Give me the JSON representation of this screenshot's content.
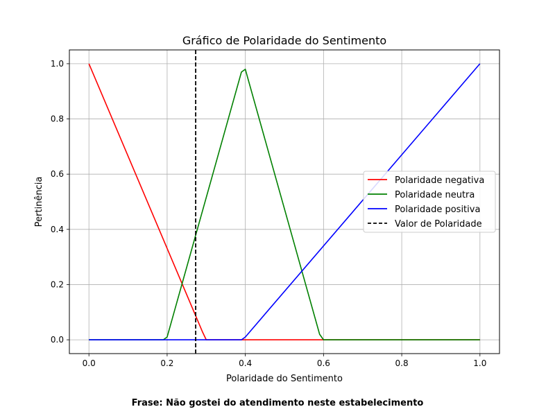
{
  "chart_data": {
    "type": "line",
    "title": "Gráfico de Polaridade do Sentimento",
    "xlabel": "Polaridade do Sentimento",
    "ylabel": "Pertinência",
    "xlim": [
      -0.05,
      1.05
    ],
    "ylim": [
      -0.05,
      1.05
    ],
    "xticks": [
      "0.0",
      "0.2",
      "0.4",
      "0.6",
      "0.8",
      "1.0"
    ],
    "yticks": [
      "0.0",
      "0.2",
      "0.4",
      "0.6",
      "0.8",
      "1.0"
    ],
    "grid": true,
    "legend_position": "center-right",
    "series": [
      {
        "name": "Polaridade negativa",
        "color": "#ff0000",
        "x": [
          0.0,
          0.29,
          0.3,
          1.0
        ],
        "y": [
          1.0,
          0.03,
          0.0,
          0.0
        ]
      },
      {
        "name": "Polaridade neutra",
        "color": "#008000",
        "x": [
          0.0,
          0.19,
          0.2,
          0.39,
          0.4,
          0.59,
          0.6,
          1.0
        ],
        "y": [
          0.0,
          0.0,
          0.01,
          0.97,
          0.98,
          0.02,
          0.0,
          0.0
        ]
      },
      {
        "name": "Polaridade positiva",
        "color": "#0000ff",
        "x": [
          0.0,
          0.39,
          0.4,
          1.0
        ],
        "y": [
          0.0,
          0.0,
          0.01,
          1.0
        ]
      }
    ],
    "vline": {
      "name": "Valor de Polaridade",
      "x": 0.273,
      "color": "#000000",
      "style": "dashed"
    }
  },
  "caption": "Frase: Não gostei do atendimento neste estabelecimento"
}
